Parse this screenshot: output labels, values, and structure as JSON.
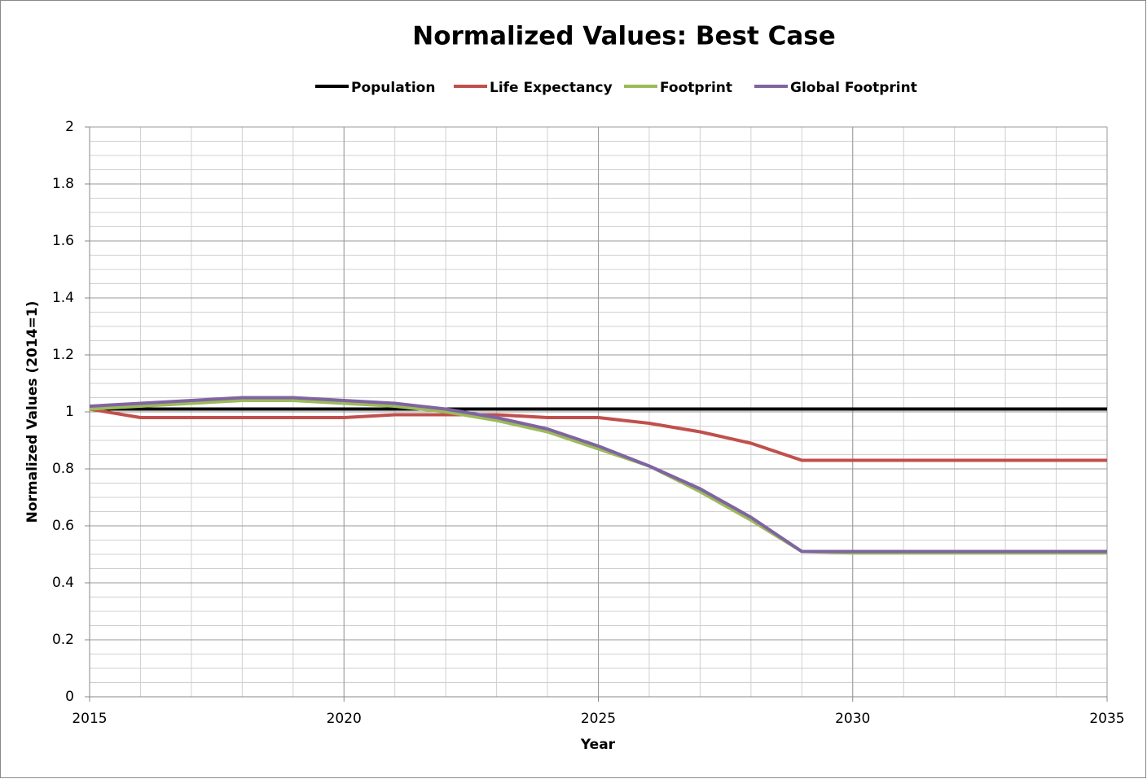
{
  "chart_data": {
    "type": "line",
    "title": "Normalized Values: Best Case",
    "x": [
      2015,
      2016,
      2017,
      2018,
      2019,
      2020,
      2021,
      2022,
      2023,
      2024,
      2025,
      2026,
      2027,
      2028,
      2029,
      2030,
      2031,
      2032,
      2033,
      2034,
      2035
    ],
    "series": [
      {
        "name": "Population",
        "color": "#000000",
        "values": [
          1.01,
          1.01,
          1.01,
          1.01,
          1.01,
          1.01,
          1.01,
          1.01,
          1.01,
          1.01,
          1.01,
          1.01,
          1.01,
          1.01,
          1.01,
          1.01,
          1.01,
          1.01,
          1.01,
          1.01,
          1.01
        ]
      },
      {
        "name": "Life Expectancy",
        "color": "#c0504d",
        "values": [
          1.01,
          0.98,
          0.98,
          0.98,
          0.98,
          0.98,
          0.99,
          0.99,
          0.99,
          0.98,
          0.98,
          0.96,
          0.93,
          0.89,
          0.83,
          0.83,
          0.83,
          0.83,
          0.83,
          0.83,
          0.83
        ]
      },
      {
        "name": "Footprint",
        "color": "#9bbb59",
        "values": [
          1.01,
          1.02,
          1.03,
          1.04,
          1.04,
          1.03,
          1.02,
          1.0,
          0.97,
          0.93,
          0.87,
          0.81,
          0.72,
          0.62,
          0.51,
          0.505,
          0.505,
          0.505,
          0.505,
          0.505,
          0.505
        ]
      },
      {
        "name": "Global Footprint",
        "color": "#8064a2",
        "values": [
          1.02,
          1.03,
          1.04,
          1.05,
          1.05,
          1.04,
          1.03,
          1.01,
          0.98,
          0.94,
          0.88,
          0.81,
          0.73,
          0.63,
          0.51,
          0.51,
          0.51,
          0.51,
          0.51,
          0.51,
          0.51
        ]
      }
    ],
    "xlabel": "Year",
    "ylabel": "Normalized Values (2014=1)",
    "xlim": [
      2015,
      2035
    ],
    "xticks": [
      2015,
      2020,
      2025,
      2030,
      2035
    ],
    "ylim": [
      0,
      2
    ],
    "yticks": [
      0,
      0.2,
      0.4,
      0.6,
      0.8,
      1,
      1.2,
      1.4,
      1.6,
      1.8,
      2
    ],
    "grid": true,
    "minor_grid": {
      "x": 1,
      "y": 0.05
    },
    "legend": "top"
  }
}
